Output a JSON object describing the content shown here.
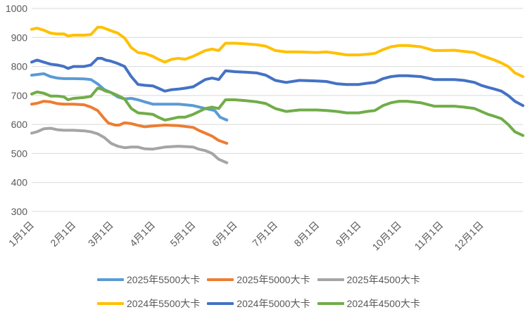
{
  "chart_data": {
    "type": "line",
    "title": "",
    "xlabel": "",
    "ylabel": "",
    "ylim": [
      300,
      1000
    ],
    "yticks": [
      300,
      400,
      500,
      600,
      700,
      800,
      900,
      1000
    ],
    "grid": true,
    "legend_position": "bottom",
    "x_unit": "day_of_year",
    "xlim": [
      1,
      366
    ],
    "x_tick_labels": [
      "1月1日",
      "2月1日",
      "3月1日",
      "4月1日",
      "5月1日",
      "6月1日",
      "7月1日",
      "8月1日",
      "9月1日",
      "10月1日",
      "11月1日",
      "12月1日"
    ],
    "x_tick_days": [
      1,
      32,
      60,
      91,
      121,
      152,
      182,
      213,
      244,
      274,
      305,
      335
    ],
    "series": [
      {
        "name": "2025年5500大卡",
        "color": "#5B9BD5",
        "x": [
          1,
          5,
          10,
          15,
          20,
          25,
          32,
          40,
          45,
          50,
          55,
          60,
          65,
          70,
          75,
          80,
          85,
          91,
          100,
          110,
          121,
          130,
          137,
          141,
          146
        ],
        "y": [
          770,
          772,
          775,
          765,
          760,
          758,
          758,
          757,
          755,
          740,
          720,
          710,
          695,
          688,
          690,
          685,
          678,
          670,
          670,
          670,
          665,
          655,
          648,
          625,
          615
        ]
      },
      {
        "name": "2025年5000大卡",
        "color": "#ED7D31",
        "x": [
          1,
          5,
          10,
          15,
          20,
          25,
          32,
          40,
          45,
          50,
          55,
          58,
          63,
          66,
          70,
          75,
          80,
          85,
          91,
          100,
          110,
          121,
          125,
          130,
          135,
          140,
          146
        ],
        "y": [
          670,
          673,
          680,
          678,
          672,
          670,
          670,
          668,
          660,
          648,
          620,
          605,
          598,
          598,
          606,
          603,
          597,
          592,
          595,
          598,
          596,
          590,
          580,
          570,
          560,
          545,
          535
        ]
      },
      {
        "name": "2025年4500大卡",
        "color": "#A5A5A5",
        "x": [
          1,
          5,
          10,
          15,
          20,
          25,
          32,
          40,
          45,
          50,
          55,
          60,
          65,
          70,
          75,
          80,
          85,
          91,
          100,
          110,
          121,
          125,
          130,
          135,
          140,
          146
        ],
        "y": [
          570,
          575,
          585,
          587,
          582,
          580,
          580,
          578,
          575,
          568,
          555,
          535,
          525,
          520,
          522,
          522,
          516,
          515,
          522,
          525,
          522,
          515,
          510,
          500,
          480,
          468
        ]
      },
      {
        "name": "2024年5500大卡",
        "color": "#FFC000",
        "x": [
          1,
          5,
          10,
          15,
          20,
          25,
          28,
          32,
          40,
          45,
          50,
          53,
          56,
          60,
          65,
          70,
          75,
          80,
          85,
          91,
          95,
          100,
          105,
          110,
          115,
          121,
          130,
          135,
          140,
          145,
          152,
          160,
          168,
          175,
          182,
          190,
          200,
          213,
          220,
          228,
          235,
          244,
          250,
          256,
          262,
          268,
          274,
          280,
          290,
          300,
          305,
          315,
          322,
          330,
          335,
          340,
          345,
          350,
          355,
          360,
          366
        ],
        "y": [
          928,
          932,
          925,
          915,
          912,
          912,
          905,
          908,
          908,
          910,
          935,
          935,
          930,
          923,
          915,
          898,
          865,
          848,
          845,
          835,
          825,
          815,
          825,
          828,
          825,
          835,
          855,
          860,
          855,
          880,
          880,
          878,
          875,
          870,
          855,
          850,
          850,
          848,
          850,
          845,
          840,
          840,
          842,
          845,
          858,
          868,
          872,
          872,
          868,
          855,
          855,
          856,
          852,
          848,
          838,
          830,
          822,
          812,
          800,
          778,
          765
        ]
      },
      {
        "name": "2024年5000大卡",
        "color": "#4472C4",
        "x": [
          1,
          5,
          10,
          15,
          20,
          25,
          28,
          32,
          40,
          45,
          50,
          53,
          56,
          60,
          65,
          70,
          75,
          80,
          85,
          91,
          95,
          100,
          105,
          110,
          115,
          121,
          130,
          135,
          140,
          145,
          152,
          160,
          168,
          175,
          182,
          190,
          200,
          213,
          220,
          228,
          235,
          244,
          250,
          256,
          262,
          268,
          274,
          280,
          290,
          300,
          305,
          315,
          322,
          330,
          335,
          340,
          345,
          350,
          355,
          360,
          366
        ],
        "y": [
          815,
          822,
          815,
          808,
          805,
          800,
          793,
          800,
          800,
          805,
          828,
          828,
          822,
          818,
          810,
          800,
          765,
          738,
          735,
          733,
          725,
          715,
          720,
          722,
          725,
          730,
          755,
          760,
          755,
          785,
          782,
          780,
          778,
          770,
          752,
          745,
          752,
          750,
          748,
          740,
          738,
          738,
          742,
          745,
          758,
          765,
          768,
          768,
          765,
          755,
          755,
          755,
          752,
          745,
          735,
          728,
          722,
          715,
          700,
          680,
          665
        ]
      },
      {
        "name": "2024年4500大卡",
        "color": "#70AD47",
        "x": [
          1,
          5,
          10,
          15,
          20,
          25,
          28,
          32,
          40,
          45,
          50,
          53,
          56,
          60,
          65,
          70,
          75,
          80,
          85,
          91,
          95,
          100,
          105,
          110,
          115,
          121,
          130,
          135,
          140,
          145,
          152,
          160,
          168,
          175,
          182,
          190,
          200,
          213,
          220,
          228,
          235,
          244,
          250,
          256,
          262,
          268,
          274,
          280,
          290,
          300,
          305,
          315,
          322,
          330,
          335,
          340,
          345,
          350,
          355,
          360,
          366
        ],
        "y": [
          705,
          712,
          708,
          698,
          698,
          695,
          685,
          690,
          693,
          697,
          725,
          722,
          715,
          710,
          700,
          688,
          655,
          640,
          638,
          635,
          625,
          615,
          620,
          625,
          625,
          635,
          655,
          660,
          655,
          685,
          685,
          682,
          678,
          672,
          655,
          645,
          650,
          650,
          648,
          645,
          640,
          640,
          645,
          648,
          665,
          675,
          680,
          680,
          675,
          663,
          663,
          663,
          660,
          655,
          645,
          635,
          628,
          620,
          600,
          575,
          562
        ]
      }
    ]
  },
  "legend": {
    "row1": [
      {
        "label": "2025年5500大卡",
        "color": "#5B9BD5"
      },
      {
        "label": "2025年5000大卡",
        "color": "#ED7D31"
      },
      {
        "label": "2025年4500大卡",
        "color": "#A5A5A5"
      }
    ],
    "row2": [
      {
        "label": "2024年5500大卡",
        "color": "#FFC000"
      },
      {
        "label": "2024年5000大卡",
        "color": "#4472C4"
      },
      {
        "label": "2024年4500大卡",
        "color": "#70AD47"
      }
    ]
  }
}
